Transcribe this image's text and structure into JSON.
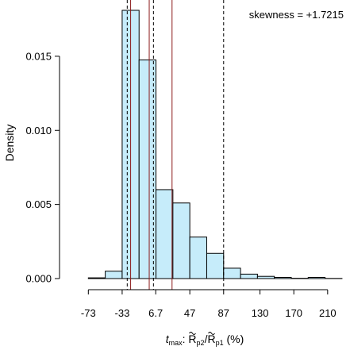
{
  "chart_data": {
    "type": "bar",
    "subtype": "histogram",
    "ylabel": "Density",
    "xlabel": {
      "prefix": "t",
      "prefix_sub": "max",
      "sep": ": ",
      "num": "R",
      "num_sub": "p2",
      "slash": "/",
      "den": "R",
      "den_sub": "p1",
      "unit": " (%)"
    },
    "annotation": "skewness = +1.7215",
    "x_tick_labels": [
      "-73",
      "-33",
      "6.7",
      "47",
      "87",
      "130",
      "170",
      "210"
    ],
    "x_tick_values": [
      -73,
      -33,
      6.7,
      47,
      87,
      130,
      170,
      210
    ],
    "xlim": [
      -93,
      228
    ],
    "y_ticks": [
      0,
      0.005,
      0.01,
      0.015
    ],
    "y_tick_labels": [
      "0.000",
      "0.005",
      "0.010",
      "0.015"
    ],
    "ylim": [
      0,
      0.0181
    ],
    "bin_edges": [
      -73,
      -53,
      -33,
      -13,
      7,
      27,
      47,
      67,
      87,
      107,
      127,
      147,
      167,
      187,
      207,
      227
    ],
    "densities": [
      5e-05,
      0.0005,
      0.0181,
      0.01475,
      0.006,
      0.0051,
      0.0028,
      0.0017,
      0.0007,
      0.0003,
      0.00015,
      8e-05,
      2e-05,
      8e-05,
      1e-05
    ],
    "bar_fill": "#c6ecfa",
    "bar_stroke": "#000000",
    "vlines": [
      {
        "x": -27,
        "style": "dashed",
        "color": "#000000"
      },
      {
        "x": -23,
        "style": "solid",
        "color": "#8b1a1a"
      },
      {
        "x": -1,
        "style": "solid",
        "color": "#8b1a1a"
      },
      {
        "x": 4,
        "style": "dashed",
        "color": "#000000"
      },
      {
        "x": 26,
        "style": "solid",
        "color": "#8b1a1a"
      },
      {
        "x": 87,
        "style": "dashed",
        "color": "#000000"
      }
    ]
  }
}
